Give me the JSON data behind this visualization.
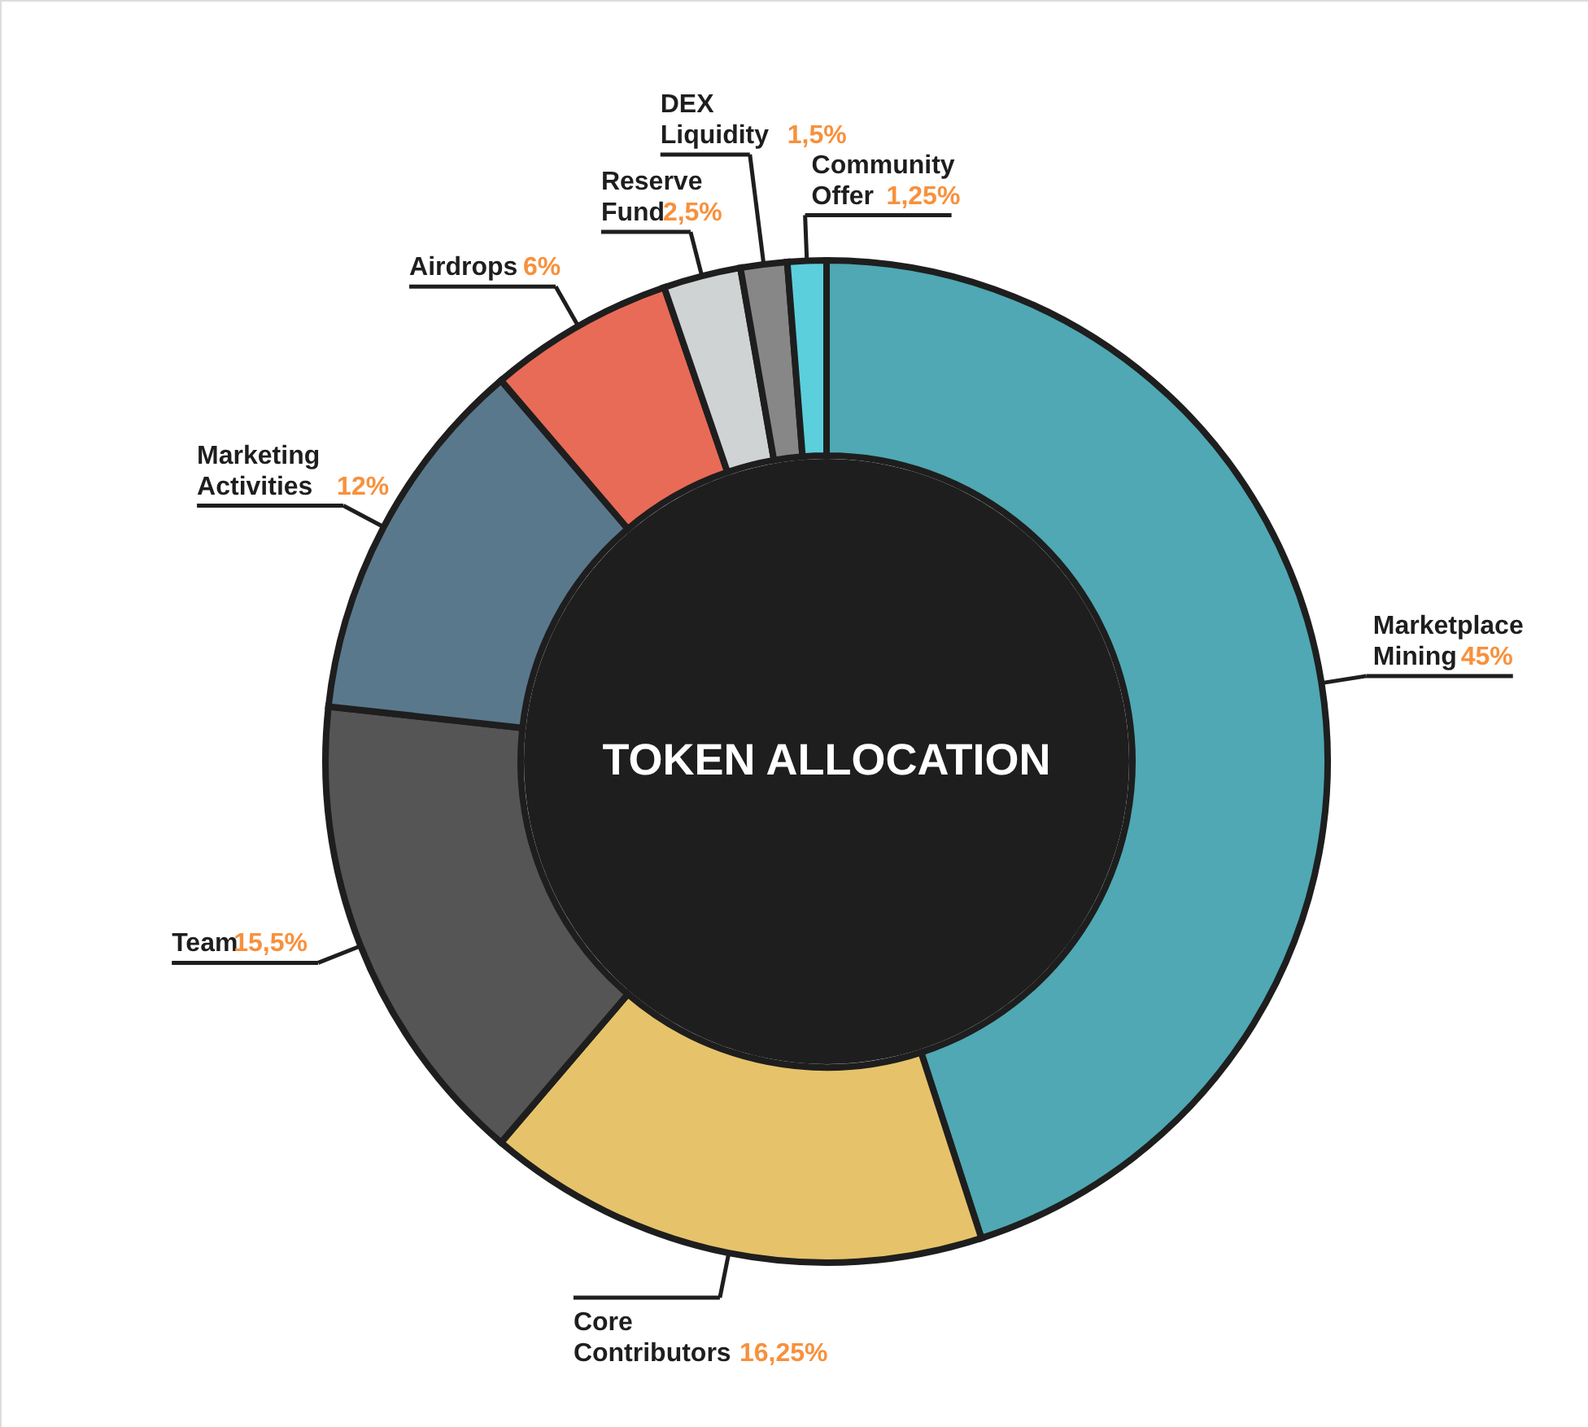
{
  "chart_data": {
    "type": "donut",
    "title": "TOKEN ALLOCATION",
    "categories": [
      "Marketplace Mining",
      "Core Contributors",
      "Team",
      "Marketing Activities",
      "Airdrops",
      "Reserve Fund",
      "DEX Liquidity",
      "Community Offer"
    ],
    "values": [
      45,
      16.25,
      15.5,
      12,
      6,
      2.5,
      1.5,
      1.25
    ],
    "value_labels": [
      "45%",
      "16,25%",
      "15,5%",
      "12%",
      "6%",
      "2,5%",
      "1,5%",
      "1,25%"
    ],
    "colors": [
      "#4fa8b3",
      "#e6c36a",
      "#555555",
      "#5a788c",
      "#e86b57",
      "#cfd3d3",
      "#878787",
      "#5ccfdc"
    ]
  }
}
